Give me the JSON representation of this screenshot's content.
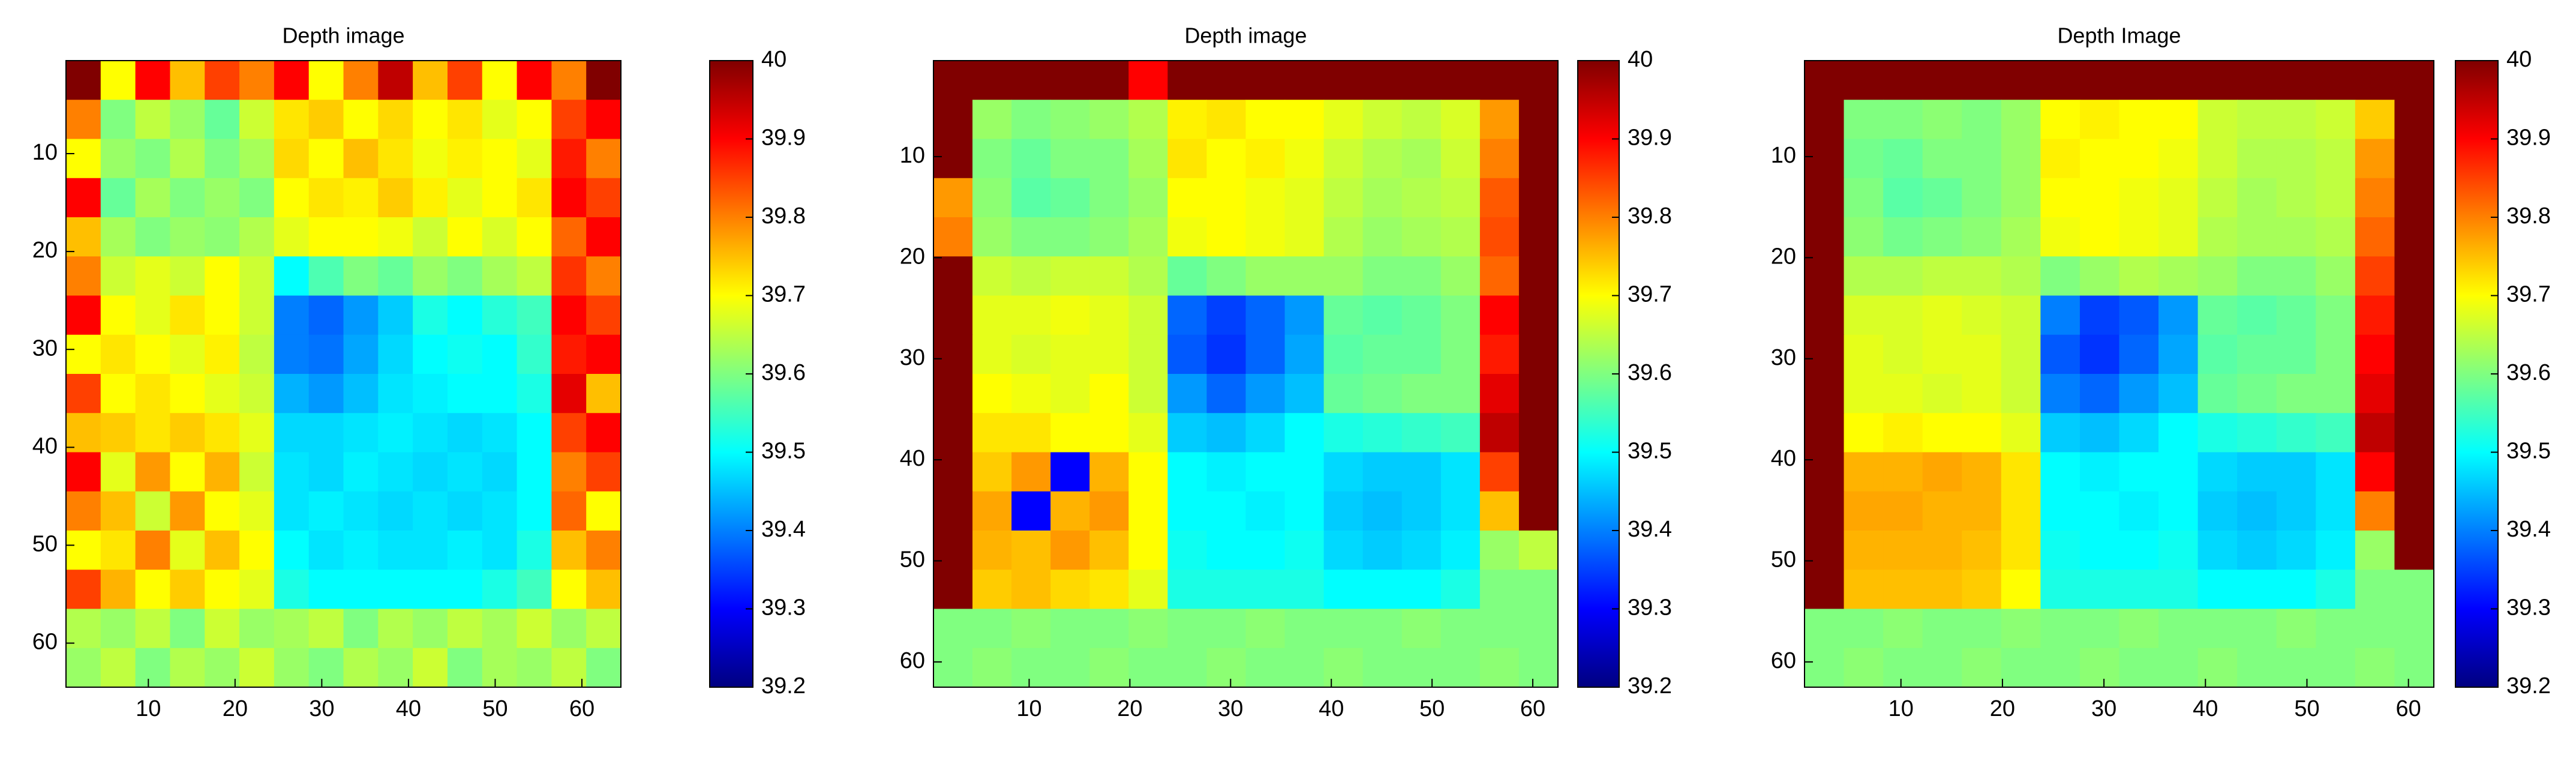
{
  "chart_data": [
    {
      "type": "heatmap",
      "title": "Depth image",
      "colormap": "jet",
      "xlim": [
        0.5,
        64.5
      ],
      "ylim": [
        64.5,
        0.5
      ],
      "xticks": [
        10,
        20,
        30,
        40,
        50,
        60
      ],
      "yticks": [
        10,
        20,
        30,
        40,
        50,
        60
      ],
      "clim": [
        39.2,
        40
      ],
      "cticks": [
        39.2,
        39.3,
        39.4,
        39.5,
        39.6,
        39.7,
        39.8,
        39.9,
        40
      ],
      "z": [
        [
          40,
          39.7,
          39.9,
          39.75,
          39.85,
          39.8,
          39.9,
          39.7,
          39.8,
          39.95,
          39.75,
          39.85,
          39.7,
          39.9,
          39.8,
          40
        ],
        [
          39.8,
          39.6,
          39.65,
          39.62,
          39.58,
          39.66,
          39.72,
          39.74,
          39.7,
          39.73,
          39.7,
          39.72,
          39.68,
          39.7,
          39.85,
          39.9
        ],
        [
          39.7,
          39.62,
          39.6,
          39.64,
          39.6,
          39.63,
          39.73,
          39.7,
          39.75,
          39.72,
          39.69,
          39.71,
          39.7,
          39.68,
          39.88,
          39.8
        ],
        [
          39.9,
          39.58,
          39.63,
          39.6,
          39.62,
          39.6,
          39.7,
          39.72,
          39.71,
          39.74,
          39.71,
          39.68,
          39.7,
          39.72,
          39.9,
          39.85
        ],
        [
          39.75,
          39.63,
          39.6,
          39.62,
          39.61,
          39.64,
          39.68,
          39.7,
          39.7,
          39.69,
          39.66,
          39.7,
          39.67,
          39.7,
          39.82,
          39.9
        ],
        [
          39.8,
          39.66,
          39.68,
          39.66,
          39.7,
          39.66,
          39.5,
          39.56,
          39.6,
          39.58,
          39.62,
          39.6,
          39.63,
          39.65,
          39.86,
          39.8
        ],
        [
          39.9,
          39.7,
          39.68,
          39.72,
          39.7,
          39.66,
          39.4,
          39.38,
          39.42,
          39.46,
          39.52,
          39.5,
          39.53,
          39.55,
          39.9,
          39.85
        ],
        [
          39.7,
          39.72,
          39.7,
          39.68,
          39.71,
          39.65,
          39.4,
          39.39,
          39.43,
          39.47,
          39.5,
          39.51,
          39.5,
          39.54,
          39.88,
          39.9
        ],
        [
          39.85,
          39.7,
          39.72,
          39.7,
          39.68,
          39.66,
          39.44,
          39.42,
          39.45,
          39.48,
          39.49,
          39.5,
          39.5,
          39.52,
          39.92,
          39.75
        ],
        [
          39.75,
          39.74,
          39.72,
          39.74,
          39.72,
          39.68,
          39.47,
          39.47,
          39.48,
          39.49,
          39.48,
          39.47,
          39.48,
          39.5,
          39.85,
          39.9
        ],
        [
          39.9,
          39.68,
          39.78,
          39.7,
          39.76,
          39.66,
          39.48,
          39.47,
          39.49,
          39.48,
          39.47,
          39.48,
          39.47,
          39.5,
          39.8,
          39.85
        ],
        [
          39.8,
          39.75,
          39.66,
          39.78,
          39.7,
          39.68,
          39.48,
          39.49,
          39.48,
          39.47,
          39.48,
          39.47,
          39.48,
          39.5,
          39.82,
          39.7
        ],
        [
          39.7,
          39.72,
          39.8,
          39.68,
          39.75,
          39.7,
          39.5,
          39.48,
          39.49,
          39.48,
          39.48,
          39.49,
          39.48,
          39.52,
          39.75,
          39.8
        ],
        [
          39.85,
          39.76,
          39.7,
          39.74,
          39.7,
          39.68,
          39.52,
          39.5,
          39.5,
          39.5,
          39.5,
          39.5,
          39.52,
          39.55,
          39.7,
          39.75
        ],
        [
          39.64,
          39.62,
          39.65,
          39.6,
          39.66,
          39.62,
          39.63,
          39.65,
          39.6,
          39.64,
          39.62,
          39.65,
          39.63,
          39.66,
          39.62,
          39.65
        ],
        [
          39.62,
          39.65,
          39.6,
          39.64,
          39.62,
          39.66,
          39.62,
          39.6,
          39.64,
          39.62,
          39.66,
          39.6,
          39.63,
          39.62,
          39.65,
          39.6
        ]
      ]
    },
    {
      "type": "heatmap",
      "title": "Depth image",
      "colormap": "jet",
      "xlim": [
        0.5,
        62.5
      ],
      "ylim": [
        62.5,
        0.5
      ],
      "xticks": [
        10,
        20,
        30,
        40,
        50,
        60
      ],
      "yticks": [
        10,
        20,
        30,
        40,
        50,
        60
      ],
      "clim": [
        39.2,
        40
      ],
      "cticks": [
        39.2,
        39.3,
        39.4,
        39.5,
        39.6,
        39.7,
        39.8,
        39.9,
        40
      ],
      "z": [
        [
          40,
          40,
          40,
          40,
          40,
          39.9,
          40,
          40,
          40,
          40,
          40,
          40,
          40,
          40,
          40,
          40
        ],
        [
          40,
          39.62,
          39.6,
          39.61,
          39.62,
          39.64,
          39.71,
          39.72,
          39.7,
          39.7,
          39.68,
          39.66,
          39.65,
          39.67,
          39.78,
          40
        ],
        [
          40,
          39.6,
          39.58,
          39.6,
          39.6,
          39.63,
          39.72,
          39.7,
          39.71,
          39.69,
          39.66,
          39.64,
          39.63,
          39.66,
          39.8,
          40
        ],
        [
          39.78,
          39.61,
          39.57,
          39.58,
          39.6,
          39.62,
          39.7,
          39.7,
          39.69,
          39.68,
          39.65,
          39.63,
          39.64,
          39.65,
          39.83,
          40
        ],
        [
          39.8,
          39.62,
          39.6,
          39.6,
          39.61,
          39.63,
          39.69,
          39.7,
          39.69,
          39.68,
          39.64,
          39.62,
          39.63,
          39.64,
          39.84,
          40
        ],
        [
          40,
          39.66,
          39.65,
          39.66,
          39.66,
          39.64,
          39.58,
          39.6,
          39.62,
          39.62,
          39.62,
          39.6,
          39.6,
          39.62,
          39.82,
          40
        ],
        [
          40,
          39.68,
          39.68,
          39.69,
          39.68,
          39.66,
          39.38,
          39.35,
          39.38,
          39.42,
          39.58,
          39.57,
          39.58,
          39.6,
          39.9,
          40
        ],
        [
          40,
          39.68,
          39.67,
          39.68,
          39.68,
          39.66,
          39.37,
          39.34,
          39.38,
          39.43,
          39.57,
          39.58,
          39.58,
          39.6,
          39.88,
          40
        ],
        [
          40,
          39.7,
          39.69,
          39.68,
          39.7,
          39.66,
          39.42,
          39.38,
          39.42,
          39.45,
          39.58,
          39.59,
          39.6,
          39.6,
          39.92,
          40
        ],
        [
          40,
          39.72,
          39.72,
          39.7,
          39.7,
          39.68,
          39.46,
          39.45,
          39.47,
          39.5,
          39.52,
          39.53,
          39.54,
          39.55,
          39.95,
          40
        ],
        [
          40,
          39.74,
          39.78,
          39.3,
          39.76,
          39.7,
          39.5,
          39.49,
          39.5,
          39.5,
          39.47,
          39.46,
          39.46,
          39.48,
          39.85,
          40
        ],
        [
          40,
          39.77,
          39.3,
          39.76,
          39.78,
          39.7,
          39.5,
          39.5,
          39.49,
          39.5,
          39.46,
          39.45,
          39.46,
          39.48,
          39.75,
          40
        ],
        [
          40,
          39.76,
          39.75,
          39.78,
          39.75,
          39.7,
          39.51,
          39.5,
          39.5,
          39.51,
          39.47,
          39.46,
          39.47,
          39.49,
          39.62,
          39.65
        ],
        [
          40,
          39.74,
          39.75,
          39.73,
          39.72,
          39.68,
          39.52,
          39.52,
          39.52,
          39.52,
          39.5,
          39.5,
          39.5,
          39.52,
          39.6,
          39.6
        ],
        [
          39.6,
          39.6,
          39.61,
          39.6,
          39.6,
          39.61,
          39.6,
          39.6,
          39.61,
          39.6,
          39.6,
          39.6,
          39.61,
          39.6,
          39.6,
          39.6
        ],
        [
          39.6,
          39.61,
          39.6,
          39.6,
          39.61,
          39.6,
          39.6,
          39.61,
          39.6,
          39.6,
          39.61,
          39.6,
          39.6,
          39.6,
          39.61,
          39.6
        ]
      ]
    },
    {
      "type": "heatmap",
      "title": "Depth Image",
      "colormap": "jet",
      "xlim": [
        0.5,
        62.5
      ],
      "ylim": [
        62.5,
        0.5
      ],
      "xticks": [
        10,
        20,
        30,
        40,
        50,
        60
      ],
      "yticks": [
        10,
        20,
        30,
        40,
        50,
        60
      ],
      "clim": [
        39.2,
        40
      ],
      "cticks": [
        39.2,
        39.3,
        39.4,
        39.5,
        39.6,
        39.7,
        39.8,
        39.9,
        40
      ],
      "z": [
        [
          40,
          40,
          40,
          40,
          40,
          40,
          40,
          40,
          40,
          40,
          40,
          40,
          40,
          40,
          40,
          40
        ],
        [
          40,
          39.6,
          39.6,
          39.61,
          39.6,
          39.62,
          39.7,
          39.71,
          39.7,
          39.7,
          39.66,
          39.65,
          39.65,
          39.66,
          39.74,
          40
        ],
        [
          40,
          39.59,
          39.58,
          39.6,
          39.6,
          39.62,
          39.71,
          39.7,
          39.7,
          39.69,
          39.66,
          39.64,
          39.64,
          39.65,
          39.78,
          40
        ],
        [
          40,
          39.6,
          39.57,
          39.58,
          39.6,
          39.62,
          39.7,
          39.7,
          39.69,
          39.68,
          39.65,
          39.63,
          39.64,
          39.65,
          39.8,
          40
        ],
        [
          40,
          39.61,
          39.59,
          39.6,
          39.61,
          39.63,
          39.69,
          39.7,
          39.69,
          39.68,
          39.64,
          39.63,
          39.63,
          39.64,
          39.82,
          40
        ],
        [
          40,
          39.64,
          39.64,
          39.65,
          39.65,
          39.64,
          39.6,
          39.62,
          39.64,
          39.63,
          39.62,
          39.6,
          39.6,
          39.62,
          39.85,
          40
        ],
        [
          40,
          39.67,
          39.67,
          39.68,
          39.67,
          39.66,
          39.4,
          39.35,
          39.37,
          39.42,
          39.58,
          39.57,
          39.58,
          39.6,
          39.88,
          40
        ],
        [
          40,
          39.68,
          39.67,
          39.68,
          39.68,
          39.66,
          39.37,
          39.34,
          39.38,
          39.43,
          39.57,
          39.58,
          39.58,
          39.6,
          39.9,
          40
        ],
        [
          40,
          39.68,
          39.68,
          39.67,
          39.68,
          39.66,
          39.4,
          39.38,
          39.42,
          39.45,
          39.58,
          39.59,
          39.6,
          39.6,
          39.92,
          40
        ],
        [
          40,
          39.7,
          39.71,
          39.7,
          39.7,
          39.68,
          39.46,
          39.45,
          39.47,
          39.5,
          39.52,
          39.53,
          39.54,
          39.55,
          39.95,
          40
        ],
        [
          40,
          39.76,
          39.76,
          39.77,
          39.76,
          39.72,
          39.5,
          39.49,
          39.5,
          39.5,
          39.47,
          39.46,
          39.46,
          39.48,
          39.9,
          40
        ],
        [
          40,
          39.77,
          39.77,
          39.76,
          39.76,
          39.72,
          39.5,
          39.5,
          39.49,
          39.5,
          39.46,
          39.45,
          39.46,
          39.48,
          39.8,
          40
        ],
        [
          40,
          39.76,
          39.76,
          39.76,
          39.75,
          39.72,
          39.51,
          39.5,
          39.5,
          39.51,
          39.47,
          39.46,
          39.47,
          39.49,
          39.62,
          40
        ],
        [
          40,
          39.75,
          39.75,
          39.75,
          39.74,
          39.7,
          39.52,
          39.52,
          39.52,
          39.52,
          39.5,
          39.5,
          39.5,
          39.52,
          39.6,
          39.6
        ],
        [
          39.6,
          39.6,
          39.61,
          39.6,
          39.6,
          39.61,
          39.6,
          39.6,
          39.61,
          39.6,
          39.6,
          39.6,
          39.61,
          39.6,
          39.6,
          39.6
        ],
        [
          39.6,
          39.61,
          39.6,
          39.6,
          39.61,
          39.6,
          39.6,
          39.61,
          39.6,
          39.6,
          39.61,
          39.6,
          39.6,
          39.6,
          39.61,
          39.6
        ]
      ]
    }
  ]
}
